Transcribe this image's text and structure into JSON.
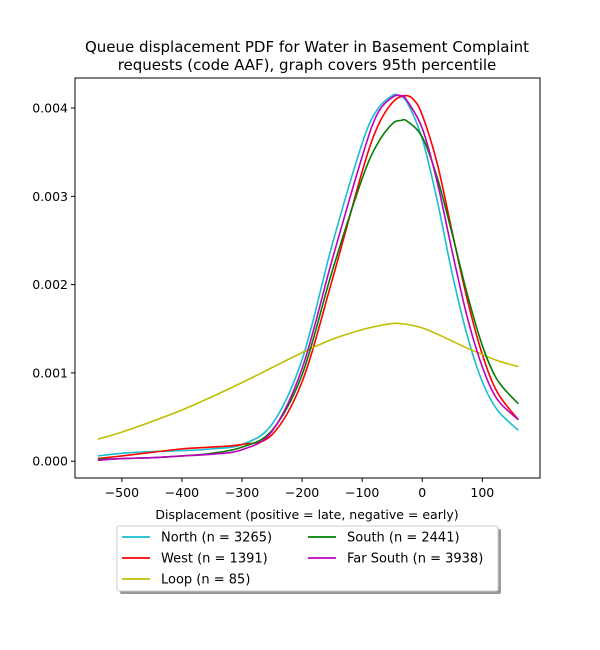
{
  "chart_data": {
    "type": "line",
    "title": [
      "Queue displacement PDF for Water in Basement Complaint",
      "requests (code AAF), graph covers 95th percentile"
    ],
    "xlabel": "Displacement (positive = late, negative = early)",
    "ylabel": "",
    "xlim": [
      -578,
      196
    ],
    "ylim": [
      -0.00019,
      0.00434
    ],
    "xticks": [
      -500,
      -400,
      -300,
      -200,
      -100,
      0,
      100
    ],
    "xtick_labels": [
      "−500",
      "−400",
      "−300",
      "−200",
      "−100",
      "0",
      "100"
    ],
    "yticks": [
      0.0,
      0.001,
      0.002,
      0.003,
      0.004
    ],
    "ytick_labels": [
      "0.000",
      "0.001",
      "0.002",
      "0.003",
      "0.004"
    ],
    "grid": false,
    "legend_position": "below",
    "series": [
      {
        "name": "North (n = 3265)",
        "color": "#17becf",
        "x": [
          -540,
          -500,
          -450,
          -400,
          -350,
          -300,
          -250,
          -200,
          -150,
          -100,
          -75,
          -50,
          -40,
          -25,
          0,
          25,
          50,
          75,
          100,
          125,
          160
        ],
        "y": [
          6e-05,
          9e-05,
          0.00011,
          0.00012,
          0.00014,
          0.00019,
          0.00042,
          0.00115,
          0.00245,
          0.0036,
          0.00398,
          0.00414,
          0.00414,
          0.00406,
          0.00365,
          0.00295,
          0.00212,
          0.00142,
          0.0009,
          0.00058,
          0.00035
        ]
      },
      {
        "name": "West (n = 1391)",
        "color": "#ff0000",
        "x": [
          -540,
          -500,
          -450,
          -400,
          -350,
          -300,
          -250,
          -200,
          -150,
          -100,
          -75,
          -50,
          -30,
          -15,
          0,
          25,
          50,
          75,
          100,
          125,
          160
        ],
        "y": [
          3e-05,
          6e-05,
          0.0001,
          0.00014,
          0.00016,
          0.00019,
          0.0003,
          0.0009,
          0.00205,
          0.00328,
          0.00378,
          0.00406,
          0.00414,
          0.0041,
          0.00392,
          0.00337,
          0.00259,
          0.00183,
          0.00121,
          0.00078,
          0.00047
        ]
      },
      {
        "name": "Loop (n = 85)",
        "color": "#bfbf00",
        "x": [
          -540,
          -500,
          -450,
          -400,
          -350,
          -300,
          -250,
          -200,
          -150,
          -100,
          -75,
          -50,
          -40,
          -25,
          0,
          25,
          50,
          75,
          100,
          125,
          160
        ],
        "y": [
          0.00025,
          0.00033,
          0.00045,
          0.00058,
          0.00073,
          0.00089,
          0.00106,
          0.00123,
          0.00138,
          0.00149,
          0.00153,
          0.00156,
          0.00156,
          0.00155,
          0.00151,
          0.00144,
          0.00136,
          0.00128,
          0.00121,
          0.00114,
          0.00107
        ]
      },
      {
        "name": "South (n = 2441)",
        "color": "#008000",
        "x": [
          -540,
          -500,
          -450,
          -400,
          -350,
          -300,
          -250,
          -200,
          -150,
          -100,
          -75,
          -50,
          -35,
          -25,
          0,
          25,
          50,
          75,
          100,
          125,
          160
        ],
        "y": [
          2e-05,
          3e-05,
          4e-05,
          6e-05,
          9e-05,
          0.00016,
          0.00035,
          0.00098,
          0.00215,
          0.0032,
          0.00359,
          0.00382,
          0.00386,
          0.00385,
          0.00367,
          0.00321,
          0.00257,
          0.00189,
          0.00131,
          0.00092,
          0.00065
        ]
      },
      {
        "name": "Far South (n = 3938)",
        "color": "#bf00bf",
        "x": [
          -540,
          -500,
          -450,
          -400,
          -350,
          -300,
          -250,
          -200,
          -150,
          -100,
          -75,
          -50,
          -35,
          -25,
          0,
          25,
          50,
          75,
          100,
          125,
          160
        ],
        "y": [
          1e-05,
          3e-05,
          4e-05,
          6e-05,
          8e-05,
          0.00013,
          0.00034,
          0.00105,
          0.00228,
          0.00345,
          0.00393,
          0.00412,
          0.00414,
          0.00408,
          0.00377,
          0.00316,
          0.00237,
          0.00163,
          0.00107,
          0.0007,
          0.00047
        ]
      }
    ]
  }
}
